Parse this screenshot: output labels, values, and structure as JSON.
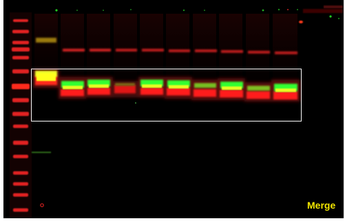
{
  "panel": {
    "label": "Merge",
    "label_color": "#f2e600",
    "background": "#000000",
    "green_channel_color": "#33ff33",
    "red_channel_color": "#ff1f1f",
    "merged_color": "#ffff1a",
    "box_color": "#ffffff"
  },
  "ladder": {
    "band_count": 16
  },
  "sample_lanes": {
    "count": 10
  }
}
